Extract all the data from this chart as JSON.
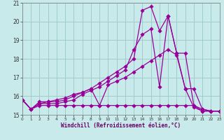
{
  "xlabel": "Windchill (Refroidissement éolien,°C)",
  "bg_color": "#c8eaea",
  "grid_color": "#a0cccc",
  "line_color": "#990099",
  "xmin": 0,
  "xmax": 23,
  "ymin": 15,
  "ymax": 21,
  "series1_x": [
    0,
    1,
    2,
    3,
    4,
    5,
    6,
    7,
    8,
    9,
    10,
    11,
    12,
    13,
    14,
    15,
    16,
    17,
    18,
    19,
    20,
    21,
    22,
    23
  ],
  "series1_y": [
    15.8,
    15.3,
    15.5,
    15.5,
    15.5,
    15.5,
    15.5,
    15.5,
    15.5,
    15.5,
    15.5,
    15.5,
    15.5,
    15.5,
    15.5,
    15.5,
    15.5,
    15.5,
    15.5,
    15.5,
    15.5,
    15.2,
    15.2,
    15.2
  ],
  "series2_x": [
    0,
    1,
    2,
    3,
    4,
    5,
    6,
    7,
    8,
    9,
    10,
    11,
    12,
    13,
    14,
    15,
    16,
    17,
    18,
    19,
    20,
    21,
    22,
    23
  ],
  "series2_y": [
    15.8,
    15.3,
    15.6,
    15.7,
    15.7,
    15.8,
    16.0,
    16.2,
    16.4,
    15.5,
    16.6,
    16.8,
    17.0,
    17.3,
    17.6,
    17.9,
    18.2,
    18.5,
    18.2,
    16.4,
    16.4,
    15.3,
    15.2,
    15.2
  ],
  "series3_x": [
    0,
    1,
    2,
    3,
    4,
    5,
    6,
    7,
    8,
    9,
    10,
    11,
    12,
    13,
    14,
    15,
    16,
    17,
    18,
    19,
    20,
    21,
    22,
    23
  ],
  "series3_y": [
    15.8,
    15.3,
    15.6,
    15.6,
    15.6,
    15.7,
    15.8,
    16.1,
    16.3,
    16.5,
    16.8,
    17.1,
    17.4,
    18.5,
    19.3,
    19.6,
    16.5,
    20.3,
    18.3,
    16.4,
    15.4,
    15.2,
    15.2,
    15.2
  ],
  "series4_x": [
    0,
    1,
    2,
    3,
    4,
    5,
    6,
    7,
    8,
    9,
    10,
    11,
    12,
    13,
    14,
    15,
    16,
    17,
    18,
    19,
    20,
    21,
    22,
    23
  ],
  "series4_y": [
    15.8,
    15.3,
    15.7,
    15.7,
    15.8,
    15.9,
    16.1,
    16.2,
    16.4,
    16.7,
    17.0,
    17.3,
    17.6,
    18.0,
    20.6,
    20.8,
    19.5,
    20.3,
    18.3,
    18.3,
    15.5,
    15.3,
    15.2,
    15.2
  ]
}
